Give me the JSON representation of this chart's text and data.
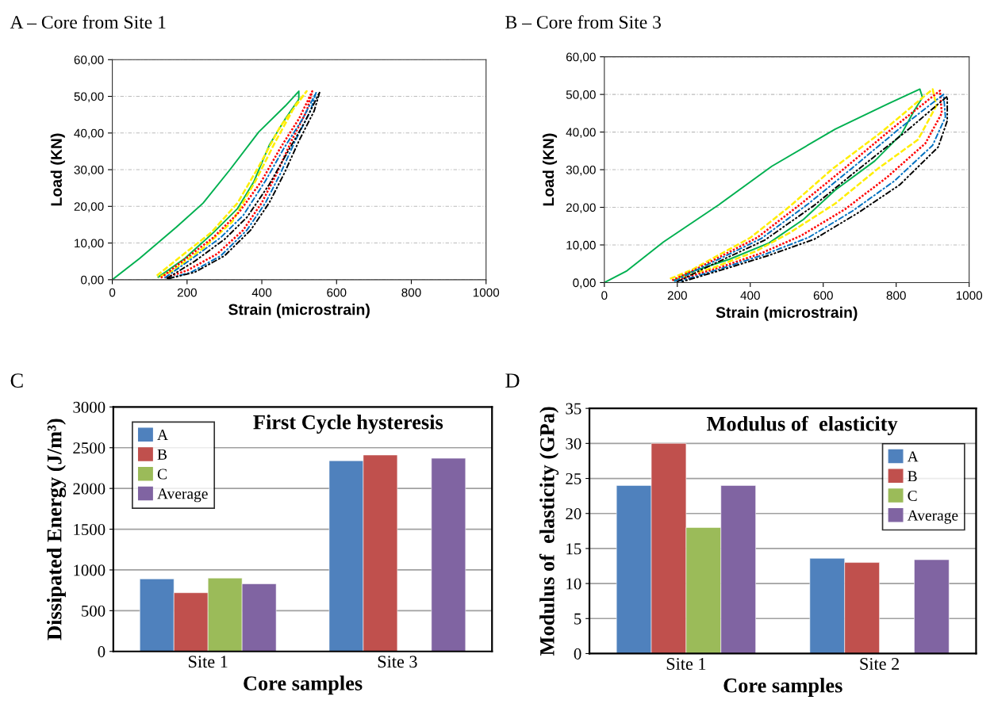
{
  "chart_data": [
    {
      "type": "line",
      "title": "A – Core from Site 1",
      "xlabel": "Strain (microstrain)",
      "ylabel": "Load (KN)",
      "xlim": [
        0,
        1000
      ],
      "ylim": [
        0,
        60
      ],
      "xticks": [
        0,
        200,
        400,
        600,
        800,
        1000
      ],
      "yticks": [
        {
          "value": 0,
          "label": "0,00"
        },
        {
          "value": 10,
          "label": "10,00"
        },
        {
          "value": 20,
          "label": "20,00"
        },
        {
          "value": 30,
          "label": "30,00"
        },
        {
          "value": 40,
          "label": "40,00"
        },
        {
          "value": 50,
          "label": "50,00"
        },
        {
          "value": 60,
          "label": "60,00"
        }
      ],
      "grid": "y",
      "series": [
        {
          "color": "#00b050",
          "line_style": "solid",
          "x": [
            0,
            73,
            172,
            243,
            314,
            392,
            463,
            499,
            499,
            463,
            420,
            378,
            335,
            271,
            194,
            123
          ],
          "values": [
            0,
            5.8,
            14.4,
            20.9,
            29.9,
            40.3,
            47.4,
            51.4,
            49.2,
            43.9,
            36.7,
            26.6,
            19.4,
            12.9,
            5.8,
            0.7
          ]
        },
        {
          "color": "#ffee00",
          "line_style": "dashed",
          "x": [
            119,
            194,
            265,
            335,
            392,
            449,
            520,
            491,
            435,
            385,
            321,
            243,
            158,
            123
          ],
          "values": [
            1.1,
            7.2,
            12.9,
            20.9,
            30.9,
            41.7,
            51.4,
            47.8,
            37.4,
            27.3,
            15.8,
            8.6,
            2.2,
            0.7
          ]
        },
        {
          "color": "#ff0000",
          "line_style": "dotted",
          "x": [
            130,
            200,
            270,
            340,
            400,
            450,
            500,
            535,
            520,
            480,
            440,
            400,
            350,
            280,
            200,
            140
          ],
          "values": [
            0.5,
            6,
            11.5,
            18.5,
            27,
            36,
            44,
            51.4,
            46,
            38,
            29,
            21,
            13.5,
            7,
            2.5,
            0.5
          ]
        },
        {
          "color": "#0070c0",
          "line_style": "dashdot",
          "x": [
            140,
            210,
            290,
            350,
            410,
            460,
            510,
            545,
            530,
            490,
            450,
            410,
            360,
            290,
            210,
            150
          ],
          "values": [
            0.5,
            5.5,
            11.5,
            17.5,
            27,
            36,
            44,
            51,
            46,
            38,
            29,
            21,
            13.5,
            6.5,
            2,
            0.3
          ]
        },
        {
          "color": "#000000",
          "line_style": "dashdotdot",
          "x": [
            145,
            220,
            300,
            360,
            420,
            470,
            515,
            555,
            540,
            500,
            460,
            420,
            370,
            300,
            220,
            150
          ],
          "values": [
            0.3,
            5,
            11,
            17,
            26,
            35,
            43,
            51.2,
            46,
            38,
            29,
            21,
            13.5,
            6.5,
            2,
            0.3
          ]
        }
      ]
    },
    {
      "type": "line",
      "title": "B – Core from Site 3",
      "xlabel": "Strain (microstrain)",
      "ylabel": "Load (KN)",
      "xlim": [
        0,
        1000
      ],
      "ylim": [
        0,
        60
      ],
      "xticks": [
        0,
        200,
        400,
        600,
        800,
        1000
      ],
      "yticks": [
        {
          "value": 0,
          "label": "0,00"
        },
        {
          "value": 10,
          "label": "10,00"
        },
        {
          "value": 20,
          "label": "20,00"
        },
        {
          "value": 30,
          "label": "30,00"
        },
        {
          "value": 40,
          "label": "40,00"
        },
        {
          "value": 50,
          "label": "50,00"
        },
        {
          "value": 60,
          "label": "60,00"
        }
      ],
      "grid": "y",
      "series": [
        {
          "color": "#00b050",
          "line_style": "solid",
          "x": [
            0,
            60,
            162,
            314,
            459,
            633,
            778,
            865,
            872,
            850,
            814,
            741,
            633,
            546,
            451,
            343,
            234,
            190
          ],
          "values": [
            0,
            3,
            10.8,
            20.7,
            30.9,
            40.8,
            47.5,
            51.4,
            49.2,
            45.8,
            39.4,
            32.3,
            24.6,
            16.8,
            10.5,
            6.2,
            2.7,
            0.6
          ]
        },
        {
          "color": "#ffee00",
          "line_style": "dashed",
          "x": [
            180,
            240,
            400,
            509,
            625,
            760,
            900,
            910,
            860,
            749,
            633,
            509,
            415,
            300,
            196
          ],
          "values": [
            1.0,
            3.4,
            11.9,
            20.3,
            30.2,
            40,
            51.4,
            47,
            38,
            30.2,
            21,
            13.3,
            8.3,
            4,
            1.0
          ]
        },
        {
          "color": "#ff0000",
          "line_style": "dotted",
          "x": [
            186,
            250,
            420,
            540,
            660,
            790,
            920,
            925,
            880,
            775,
            660,
            540,
            430,
            310,
            202
          ],
          "values": [
            0.6,
            3.5,
            12,
            21,
            30.5,
            41,
            51,
            45,
            37,
            28,
            19.5,
            12.5,
            7.8,
            3.8,
            0.7
          ]
        },
        {
          "color": "#0070c0",
          "line_style": "dashdot",
          "x": [
            192,
            260,
            430,
            560,
            680,
            810,
            930,
            935,
            900,
            795,
            680,
            560,
            440,
            320,
            208
          ],
          "values": [
            0.3,
            3.7,
            11.7,
            21,
            30.5,
            41,
            50,
            44,
            36.5,
            27,
            19,
            12,
            7.5,
            3.7,
            0.4
          ]
        },
        {
          "color": "#000000",
          "line_style": "dashdotdot",
          "x": [
            198,
            270,
            440,
            575,
            695,
            825,
            940,
            940,
            915,
            810,
            695,
            575,
            450,
            330,
            212
          ],
          "values": [
            0.1,
            3.6,
            11.3,
            20.5,
            30,
            40,
            49.5,
            43,
            36,
            26,
            18.5,
            11.5,
            7.2,
            3.6,
            0.2
          ]
        }
      ]
    },
    {
      "type": "bar",
      "title": "C",
      "subtitle": "First Cycle hysteresis",
      "xlabel": "Core samples",
      "ylabel": "Dissipated Energy (J/m³)",
      "categories": [
        "Site 1",
        "Site 3"
      ],
      "ylim": [
        0,
        3000
      ],
      "yticks": [
        0,
        500,
        1000,
        1500,
        2000,
        2500,
        3000
      ],
      "grid": "y",
      "legend": "top left",
      "series": [
        {
          "name": "A",
          "color": "#4f81bd",
          "values": [
            890,
            2340
          ]
        },
        {
          "name": "B",
          "color": "#c0504d",
          "values": [
            720,
            2410
          ]
        },
        {
          "name": "C",
          "color": "#9bbb59",
          "values": [
            900,
            null
          ]
        },
        {
          "name": "Average",
          "color": "#8064a2",
          "values": [
            830,
            2370
          ]
        }
      ]
    },
    {
      "type": "bar",
      "title": "D",
      "subtitle": "Modulus of  elasticity",
      "xlabel": "Core samples",
      "ylabel": "Modulus of  elasticity (GPa)",
      "categories": [
        "Site 1",
        "Site 2"
      ],
      "ylim": [
        0,
        35
      ],
      "yticks": [
        0,
        5,
        10,
        15,
        20,
        25,
        30,
        35
      ],
      "grid": "y",
      "legend": "right",
      "series": [
        {
          "name": "A",
          "color": "#4f81bd",
          "values": [
            24,
            13.6
          ]
        },
        {
          "name": "B",
          "color": "#c0504d",
          "values": [
            30,
            13
          ]
        },
        {
          "name": "C",
          "color": "#9bbb59",
          "values": [
            18,
            null
          ]
        },
        {
          "name": "Average",
          "color": "#8064a2",
          "values": [
            24,
            13.4
          ]
        }
      ]
    }
  ]
}
